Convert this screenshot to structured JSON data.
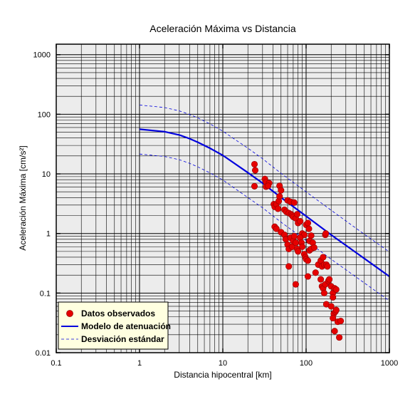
{
  "chart_data": {
    "type": "scatter",
    "title": "Aceleración Máxima vs Distancia",
    "xlabel": "Distancia hipocentral [km]",
    "ylabel": "Aceleración Máxima [cm/s²]",
    "x_scale": "log",
    "y_scale": "log",
    "xlim": [
      0.1,
      1000
    ],
    "ylim": [
      0.01,
      1500
    ],
    "x_ticks": [
      "0.1",
      "1",
      "10",
      "100",
      "1000"
    ],
    "y_ticks": [
      "0.01",
      "0.1",
      "1",
      "10",
      "100",
      "1000"
    ],
    "grid": true,
    "legend_position": "bottom-left",
    "legend": {
      "observed": "Datos observados",
      "model": "Modelo de atenuación",
      "std": "Desviación estándar"
    },
    "colors": {
      "observed": "#e60000",
      "model": "#0000dd",
      "std": "#0000dd",
      "plot_bg": "#ececec",
      "legend_bg": "#ffffe0"
    },
    "series": [
      {
        "name": "Datos observados",
        "type": "scatter",
        "points": [
          [
            24,
            14.5
          ],
          [
            24.5,
            11.5
          ],
          [
            24,
            6.2
          ],
          [
            32,
            8.2
          ],
          [
            33,
            7.3
          ],
          [
            33,
            6.1
          ],
          [
            36,
            7.0
          ],
          [
            35,
            6.3
          ],
          [
            48,
            6.3
          ],
          [
            50,
            5.3
          ],
          [
            41,
            3.1
          ],
          [
            42,
            2.8
          ],
          [
            44,
            3.1
          ],
          [
            46,
            2.6
          ],
          [
            47,
            3.5
          ],
          [
            48,
            4.2
          ],
          [
            55,
            2.5
          ],
          [
            58,
            2.3
          ],
          [
            60,
            3.6
          ],
          [
            62,
            2.2
          ],
          [
            65,
            3.4
          ],
          [
            66,
            2.1
          ],
          [
            68,
            2.0
          ],
          [
            72,
            3.3
          ],
          [
            70,
            1.9
          ],
          [
            75,
            1.8
          ],
          [
            78,
            2.1
          ],
          [
            80,
            1.5
          ],
          [
            85,
            1.6
          ],
          [
            90,
            1.0
          ],
          [
            95,
            0.95
          ],
          [
            100,
            1.4
          ],
          [
            105,
            1.5
          ],
          [
            108,
            1.2
          ],
          [
            110,
            0.75
          ],
          [
            120,
            0.7
          ],
          [
            42,
            1.3
          ],
          [
            44,
            1.2
          ],
          [
            50,
            1.05
          ],
          [
            55,
            0.95
          ],
          [
            57,
            0.8
          ],
          [
            60,
            0.65
          ],
          [
            62,
            0.55
          ],
          [
            65,
            0.85
          ],
          [
            68,
            0.6
          ],
          [
            70,
            0.75
          ],
          [
            72,
            0.9
          ],
          [
            75,
            0.7
          ],
          [
            78,
            0.55
          ],
          [
            80,
            0.5
          ],
          [
            85,
            0.85
          ],
          [
            88,
            0.7
          ],
          [
            90,
            0.6
          ],
          [
            95,
            0.45
          ],
          [
            98,
            0.4
          ],
          [
            100,
            0.37
          ],
          [
            105,
            0.35
          ],
          [
            110,
            0.52
          ],
          [
            115,
            0.55
          ],
          [
            125,
            0.58
          ],
          [
            130,
            0.22
          ],
          [
            140,
            0.3
          ],
          [
            150,
            0.35
          ],
          [
            155,
            0.28
          ],
          [
            160,
            0.4
          ],
          [
            165,
            0.3
          ],
          [
            170,
            0.95
          ],
          [
            172,
            1.0
          ],
          [
            175,
            0.3
          ],
          [
            180,
            0.28
          ],
          [
            150,
            0.17
          ],
          [
            155,
            0.13
          ],
          [
            160,
            0.12
          ],
          [
            165,
            0.1
          ],
          [
            170,
            0.14
          ],
          [
            185,
            0.16
          ],
          [
            190,
            0.17
          ],
          [
            200,
            0.13
          ],
          [
            210,
            0.1
          ],
          [
            220,
            0.12
          ],
          [
            230,
            0.115
          ],
          [
            175,
            0.065
          ],
          [
            200,
            0.06
          ],
          [
            210,
            0.085
          ],
          [
            215,
            0.045
          ],
          [
            225,
            0.049
          ],
          [
            230,
            0.052
          ],
          [
            240,
            0.033
          ],
          [
            210,
            0.038
          ],
          [
            220,
            0.023
          ],
          [
            250,
            0.018
          ],
          [
            260,
            0.034
          ],
          [
            75,
            0.14
          ],
          [
            62,
            0.28
          ],
          [
            105,
            0.19
          ],
          [
            115,
            0.92
          ]
        ]
      },
      {
        "name": "Modelo de atenuación",
        "type": "line",
        "points": [
          [
            1,
            56
          ],
          [
            2,
            51
          ],
          [
            3,
            45
          ],
          [
            4,
            39
          ],
          [
            5,
            34
          ],
          [
            7,
            27
          ],
          [
            10,
            20.5
          ],
          [
            20,
            10.5
          ],
          [
            30,
            7.0
          ],
          [
            50,
            4.0
          ],
          [
            100,
            1.95
          ],
          [
            200,
            0.95
          ],
          [
            500,
            0.38
          ],
          [
            1000,
            0.19
          ]
        ]
      },
      {
        "name": "Desviación estándar (superior)",
        "type": "line",
        "points": [
          [
            1,
            143
          ],
          [
            2,
            130
          ],
          [
            3,
            114
          ],
          [
            4,
            99
          ],
          [
            5,
            87
          ],
          [
            7,
            69
          ],
          [
            10,
            52
          ],
          [
            20,
            27
          ],
          [
            30,
            18
          ],
          [
            50,
            10.2
          ],
          [
            100,
            5.0
          ],
          [
            200,
            2.45
          ],
          [
            500,
            0.97
          ],
          [
            1000,
            0.49
          ]
        ]
      },
      {
        "name": "Desviación estándar (inferior)",
        "type": "line",
        "points": [
          [
            1,
            21.5
          ],
          [
            2,
            19.6
          ],
          [
            3,
            17.3
          ],
          [
            4,
            15.0
          ],
          [
            5,
            13.1
          ],
          [
            7,
            10.4
          ],
          [
            10,
            7.9
          ],
          [
            20,
            4.0
          ],
          [
            30,
            2.7
          ],
          [
            50,
            1.55
          ],
          [
            100,
            0.76
          ],
          [
            200,
            0.37
          ],
          [
            500,
            0.148
          ],
          [
            1000,
            0.074
          ]
        ]
      }
    ]
  }
}
